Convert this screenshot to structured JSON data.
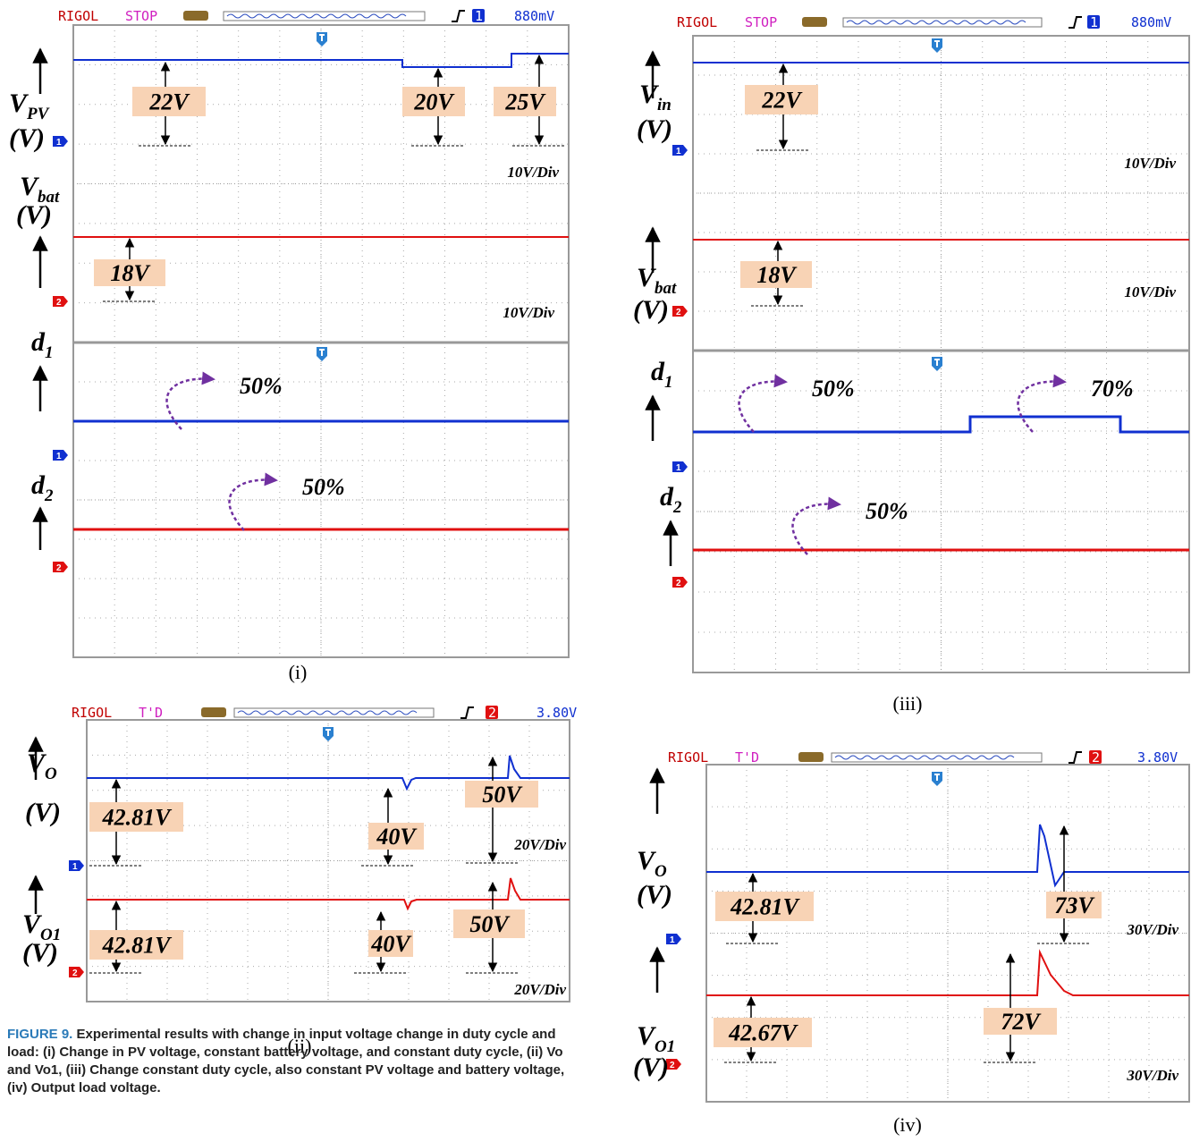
{
  "panels": [
    {
      "label": "(i)",
      "header": {
        "brand": "RIGOL",
        "status": "STOP",
        "channel": "1",
        "level": "880mV"
      },
      "signals": [
        {
          "symbol": "V",
          "sub": "PV",
          "unit": "(V)"
        },
        {
          "symbol": "V",
          "sub": "bat",
          "unit": "(V)"
        },
        {
          "symbol": "d",
          "sub": "1"
        },
        {
          "symbol": "d",
          "sub": "2"
        }
      ],
      "channel_markers": [
        "1",
        "2",
        "1",
        "2"
      ],
      "readings": [
        "22V",
        "20V",
        "25V",
        "18V"
      ],
      "scales": [
        "10V/Div",
        "10V/Div"
      ],
      "duty": [
        "50%",
        "50%"
      ]
    },
    {
      "label": "(iii)",
      "header": {
        "brand": "RIGOL",
        "status": "STOP",
        "channel": "1",
        "level": "880mV"
      },
      "signals": [
        {
          "symbol": "V",
          "sub": "in",
          "unit": "(V)"
        },
        {
          "symbol": "V",
          "sub": "bat",
          "unit": "(V)"
        },
        {
          "symbol": "d",
          "sub": "1"
        },
        {
          "symbol": "d",
          "sub": "2"
        }
      ],
      "channel_markers": [
        "1",
        "2",
        "1",
        "2"
      ],
      "readings": [
        "22V",
        "18V"
      ],
      "scales": [
        "10V/Div",
        "10V/Div"
      ],
      "duty": [
        "50%",
        "70%",
        "50%"
      ]
    },
    {
      "label": "(ii)",
      "header": {
        "brand": "RIGOL",
        "status": "T'D",
        "channel": "2",
        "level": "3.80V"
      },
      "signals": [
        {
          "symbol": "V",
          "sub": "O",
          "unit": "(V)"
        },
        {
          "symbol": "V",
          "sub": "O1",
          "unit": "(V)"
        }
      ],
      "channel_markers": [
        "1",
        "2"
      ],
      "readings": [
        "42.81V",
        "40V",
        "50V",
        "42.81V",
        "40V",
        "50V"
      ],
      "scales": [
        "20V/Div",
        "20V/Div"
      ],
      "duty": []
    },
    {
      "label": "(iv)",
      "header": {
        "brand": "RIGOL",
        "status": "T'D",
        "channel": "2",
        "level": "3.80V"
      },
      "signals": [
        {
          "symbol": "V",
          "sub": "O",
          "unit": "(V)"
        },
        {
          "symbol": "V",
          "sub": "O1",
          "unit": "(V)"
        }
      ],
      "channel_markers": [
        "1",
        "2"
      ],
      "readings": [
        "42.81V",
        "73V",
        "42.67V",
        "72V"
      ],
      "scales": [
        "30V/Div",
        "30V/Div"
      ],
      "duty": []
    }
  ],
  "caption": {
    "tag": "FIGURE 9.",
    "text": "Experimental results with change in input voltage change in duty cycle and load: (i) Change in PV voltage, constant battery voltage, and constant duty cycle, (ii) Vo and Vo1, (iii) Change constant duty cycle, also constant PV voltage and battery voltage, (iv) Output load voltage."
  }
}
